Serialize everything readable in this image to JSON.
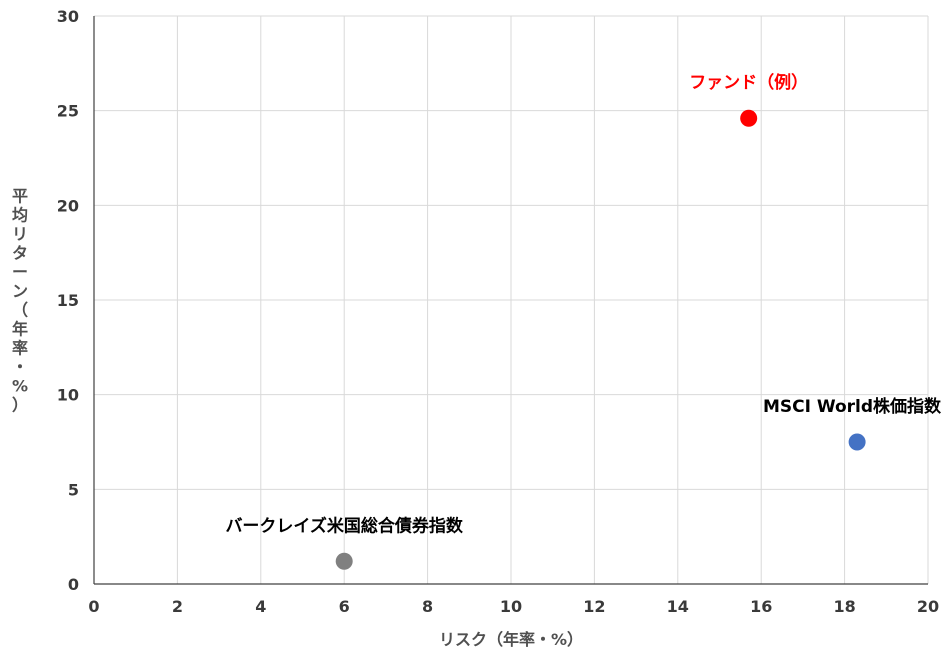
{
  "chart_data": {
    "type": "scatter",
    "title": "",
    "xlabel": "リスク（年率・%）",
    "ylabel": "平均リターン（年率・%）",
    "xlim": [
      0,
      20
    ],
    "ylim": [
      0,
      30
    ],
    "xticks": [
      0,
      2,
      4,
      6,
      8,
      10,
      12,
      14,
      16,
      18,
      20
    ],
    "yticks": [
      0,
      5,
      10,
      15,
      20,
      25,
      30
    ],
    "grid": true,
    "points": [
      {
        "label": "ファンド（例）",
        "x": 15.7,
        "y": 24.6,
        "color": "#ff0000",
        "label_color": "#ff0000"
      },
      {
        "label": "MSCI World株価指数",
        "x": 18.3,
        "y": 7.5,
        "color": "#4472c4",
        "label_color": "#000000"
      },
      {
        "label": "バークレイズ米国総合債券指数",
        "x": 6.0,
        "y": 1.2,
        "color": "#808080",
        "label_color": "#000000"
      }
    ]
  }
}
